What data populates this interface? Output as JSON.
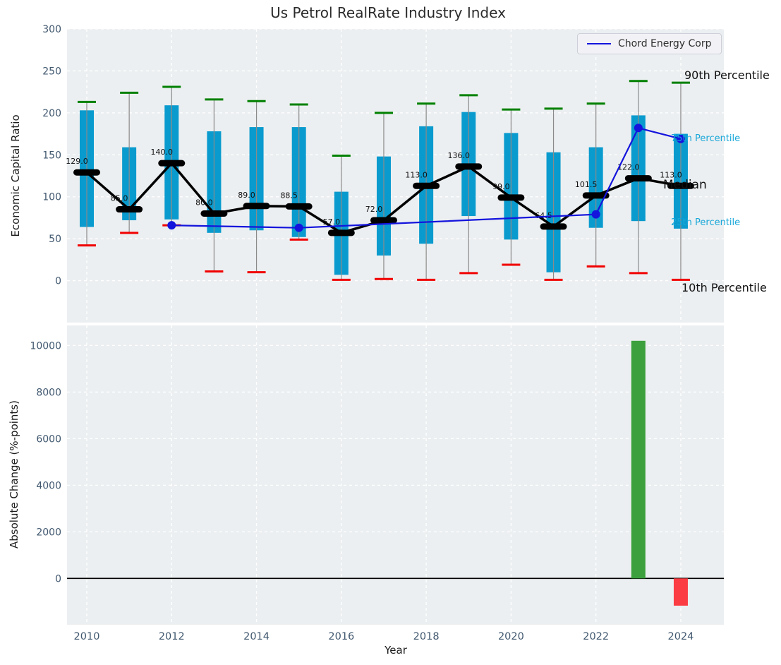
{
  "title": "Us Petrol RealRate Industry Index",
  "legend": {
    "label": "Chord Energy Corp"
  },
  "annotations": {
    "p90": "90th Percentile",
    "p75": "75th Percentile",
    "median": "Median",
    "p25": "25th Percentile",
    "p10": "10th Percentile"
  },
  "colors": {
    "box": "#0a9bce",
    "whisker": "#8a8a8a",
    "cap_high": "#008000",
    "cap_low": "#f10000",
    "median_line": "#000000",
    "company_line": "#1414dd",
    "bar_up": "#3ca03c",
    "bar_down": "#fb3c43",
    "plot_bg": "#eceff1",
    "grid": "#ffffff",
    "tick": "#41586f",
    "zero_line": "#000000"
  },
  "chart_data": [
    {
      "type": "boxplot+line",
      "title": "Us Petrol RealRate Industry Index",
      "xlabel": "Year",
      "ylabel": "Economic Capital Ratio",
      "ylim": [
        -50,
        300
      ],
      "yticks": [
        0,
        50,
        100,
        150,
        200,
        250,
        300
      ],
      "xticks": [
        2010,
        2012,
        2014,
        2016,
        2018,
        2020,
        2022,
        2024
      ],
      "grid": true,
      "legend_position": "upper right",
      "years": [
        2010,
        2011,
        2012,
        2013,
        2014,
        2015,
        2016,
        2017,
        2018,
        2019,
        2020,
        2021,
        2022,
        2023,
        2024
      ],
      "p10": [
        42,
        57,
        66,
        11,
        10,
        49,
        1,
        2,
        1,
        9,
        19,
        1,
        17,
        9,
        1
      ],
      "p25": [
        64,
        72,
        73,
        57,
        60,
        52,
        7,
        30,
        44,
        77,
        49,
        10,
        63,
        71,
        62
      ],
      "median": [
        129.0,
        85.0,
        140.0,
        80.0,
        89.0,
        88.5,
        57.0,
        72.0,
        113.0,
        136.0,
        99.0,
        64.5,
        101.5,
        122.0,
        113.0
      ],
      "p75": [
        203,
        159,
        209,
        178,
        183,
        183,
        106,
        148,
        184,
        201,
        176,
        153,
        159,
        197,
        175
      ],
      "p90": [
        213,
        224,
        231,
        216,
        214,
        210,
        149,
        200,
        211,
        221,
        204,
        205,
        211,
        238,
        236
      ],
      "median_labels": [
        "129.0",
        "85.0",
        "140.0",
        "80.0",
        "89.0",
        "88.5",
        "57.0",
        "72.0",
        "113.0",
        "136.0",
        "99.0",
        "64.5",
        "101.5",
        "122.0",
        "113.0"
      ],
      "series": [
        {
          "name": "Chord Energy Corp",
          "x": [
            2012,
            2015,
            2022,
            2023,
            2024
          ],
          "y": [
            66,
            63,
            79,
            182,
            169
          ]
        }
      ]
    },
    {
      "type": "bar",
      "xlabel": "Year",
      "ylabel": "Absolute Change (%-points)",
      "ylim": [
        -1990,
        10860
      ],
      "yticks": [
        0,
        2000,
        4000,
        6000,
        8000,
        10000
      ],
      "xticks": [
        2010,
        2012,
        2014,
        2016,
        2018,
        2020,
        2022,
        2024
      ],
      "grid": true,
      "bars": [
        {
          "year": 2023,
          "value": 10200,
          "direction": "up"
        },
        {
          "year": 2024,
          "value": -1170,
          "direction": "down"
        }
      ]
    }
  ]
}
